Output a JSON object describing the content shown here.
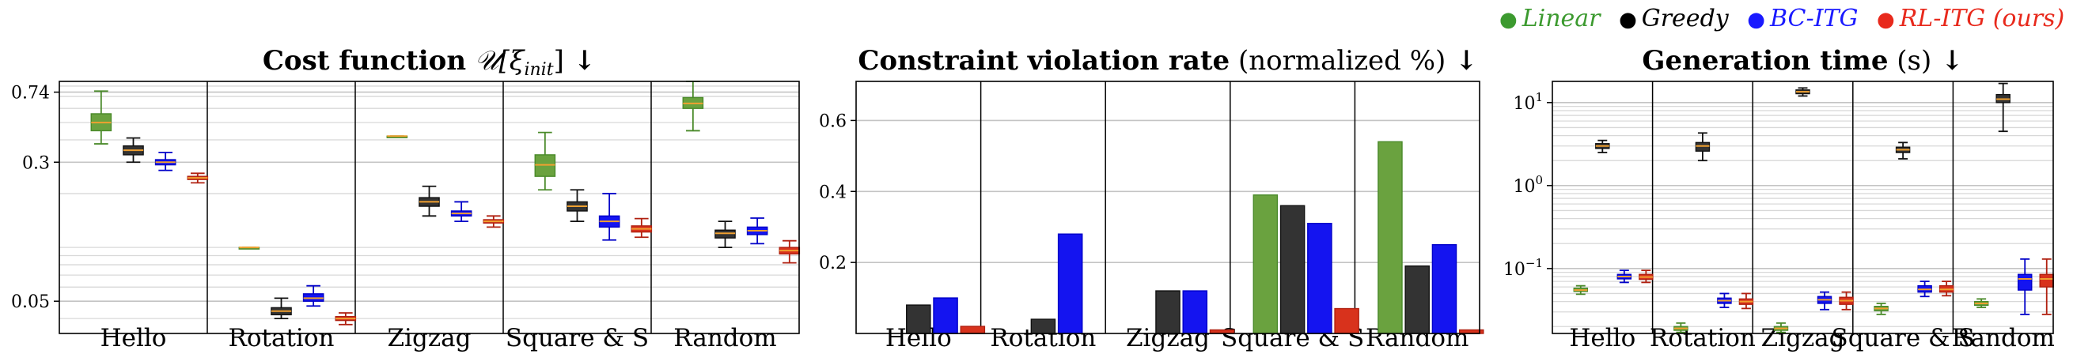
{
  "legend": [
    {
      "label": "Linear",
      "color": "#3c9a2f"
    },
    {
      "label": "Greedy",
      "color": "#000000"
    },
    {
      "label": "BC-ITG",
      "color": "#1a1aff"
    },
    {
      "label": "RL-ITG (ours)",
      "color": "#e8291c"
    }
  ],
  "colors": {
    "Linear": {
      "fill": "#6aa23f",
      "edge": "#4a8a2a"
    },
    "Greedy": {
      "fill": "#333333",
      "edge": "#111111"
    },
    "BC-ITG": {
      "fill": "#1414f0",
      "edge": "#0000c8"
    },
    "RL-ITG (ours)": {
      "fill": "#d8321c",
      "edge": "#b02010"
    }
  },
  "chart_data": [
    {
      "type": "box",
      "title_bold": "Cost function",
      "title_math": "𝒰[ξ",
      "title_sub": "init",
      "title_math_end": "]",
      "title_arrow": "↓",
      "categories": [
        "Hello",
        "Rotation",
        "Zigzag",
        "Square & S",
        "Random"
      ],
      "yscale": "log",
      "ylim": [
        0.033,
        0.85
      ],
      "yticks": [
        {
          "v": 0.74,
          "label": "0.74"
        },
        {
          "v": 0.3,
          "label": "0.3"
        },
        {
          "v": 0.05,
          "label": "0.05"
        }
      ],
      "series": [
        {
          "name": "Linear",
          "boxes": [
            [
              0.38,
              0.45,
              0.5,
              0.56,
              0.75
            ],
            [
              0.1,
              0.1,
              0.1,
              0.1,
              0.1
            ],
            [
              0.42,
              0.42,
              0.42,
              0.42,
              0.42
            ],
            [
              0.21,
              0.25,
              0.29,
              0.33,
              0.44
            ],
            [
              0.45,
              0.6,
              0.64,
              0.69,
              0.85
            ]
          ]
        },
        {
          "name": "Greedy",
          "boxes": [
            [
              0.3,
              0.33,
              0.35,
              0.37,
              0.41
            ],
            [
              0.04,
              0.042,
              0.044,
              0.046,
              0.052
            ],
            [
              0.15,
              0.17,
              0.18,
              0.19,
              0.22
            ],
            [
              0.14,
              0.16,
              0.17,
              0.18,
              0.21
            ],
            [
              0.1,
              0.113,
              0.12,
              0.125,
              0.14
            ]
          ]
        },
        {
          "name": "BC-ITG",
          "boxes": [
            [
              0.27,
              0.29,
              0.3,
              0.31,
              0.34
            ],
            [
              0.047,
              0.05,
              0.052,
              0.055,
              0.061
            ],
            [
              0.14,
              0.15,
              0.155,
              0.16,
              0.18
            ],
            [
              0.11,
              0.13,
              0.14,
              0.15,
              0.2
            ],
            [
              0.105,
              0.118,
              0.124,
              0.13,
              0.146
            ]
          ]
        },
        {
          "name": "RL-ITG (ours)",
          "boxes": [
            [
              0.23,
              0.24,
              0.245,
              0.25,
              0.26
            ],
            [
              0.037,
              0.039,
              0.04,
              0.041,
              0.043
            ],
            [
              0.13,
              0.137,
              0.14,
              0.143,
              0.15
            ],
            [
              0.114,
              0.122,
              0.127,
              0.132,
              0.145
            ],
            [
              0.082,
              0.092,
              0.096,
              0.1,
              0.109
            ]
          ]
        }
      ]
    },
    {
      "type": "bar",
      "title_bold": "Constraint violation rate",
      "title_rest": "(normalized %)",
      "title_arrow": "↓",
      "categories": [
        "Hello",
        "Rotation",
        "Zigzag",
        "Square & S",
        "Random"
      ],
      "ylim": [
        0,
        0.71
      ],
      "yticks": [
        {
          "v": 0.2,
          "label": "0.2"
        },
        {
          "v": 0.4,
          "label": "0.4"
        },
        {
          "v": 0.6,
          "label": "0.6"
        }
      ],
      "series": [
        {
          "name": "Linear",
          "values": [
            0,
            0,
            0,
            0.39,
            0.54
          ]
        },
        {
          "name": "Greedy",
          "values": [
            0.08,
            0.04,
            0.12,
            0.36,
            0.19
          ]
        },
        {
          "name": "BC-ITG",
          "values": [
            0.1,
            0.28,
            0.12,
            0.31,
            0.25
          ]
        },
        {
          "name": "RL-ITG (ours)",
          "values": [
            0.02,
            0,
            0.01,
            0.07,
            0.01
          ]
        }
      ]
    },
    {
      "type": "box",
      "title_bold": "Generation time",
      "title_rest": "(s)",
      "title_arrow": "↓",
      "categories": [
        "Hello",
        "Rotation",
        "Zigzag",
        "Square & S",
        "Random"
      ],
      "yscale": "log",
      "ylim": [
        0.0165,
        18
      ],
      "yticks": [
        {
          "v": 10,
          "label": "10",
          "sup": "1"
        },
        {
          "v": 1,
          "label": "10",
          "sup": "0"
        },
        {
          "v": 0.1,
          "label": "10",
          "sup": "−1"
        }
      ],
      "series": [
        {
          "name": "Linear",
          "boxes": [
            [
              0.049,
              0.053,
              0.055,
              0.058,
              0.062
            ],
            [
              0.017,
              0.018,
              0.019,
              0.02,
              0.022
            ],
            [
              0.017,
              0.018,
              0.019,
              0.02,
              0.022
            ],
            [
              0.028,
              0.031,
              0.033,
              0.035,
              0.038
            ],
            [
              0.034,
              0.036,
              0.038,
              0.04,
              0.043
            ]
          ]
        },
        {
          "name": "Greedy",
          "boxes": [
            [
              2.5,
              2.8,
              3.0,
              3.2,
              3.5
            ],
            [
              2.0,
              2.6,
              3.0,
              3.3,
              4.3
            ],
            [
              12,
              12.8,
              13.5,
              14.2,
              15
            ],
            [
              2.1,
              2.5,
              2.7,
              2.9,
              3.3
            ],
            [
              4.5,
              10,
              11,
              12.5,
              17
            ]
          ]
        },
        {
          "name": "BC-ITG",
          "boxes": [
            [
              0.068,
              0.075,
              0.08,
              0.085,
              0.095
            ],
            [
              0.034,
              0.038,
              0.041,
              0.044,
              0.05
            ],
            [
              0.032,
              0.038,
              0.042,
              0.046,
              0.052
            ],
            [
              0.046,
              0.052,
              0.056,
              0.062,
              0.07
            ],
            [
              0.028,
              0.055,
              0.075,
              0.085,
              0.13
            ]
          ]
        },
        {
          "name": "RL-ITG (ours)",
          "boxes": [
            [
              0.068,
              0.074,
              0.079,
              0.085,
              0.095
            ],
            [
              0.033,
              0.037,
              0.04,
              0.043,
              0.05
            ],
            [
              0.032,
              0.037,
              0.041,
              0.045,
              0.052
            ],
            [
              0.047,
              0.052,
              0.056,
              0.062,
              0.07
            ],
            [
              0.028,
              0.06,
              0.075,
              0.085,
              0.13
            ]
          ]
        }
      ]
    }
  ]
}
